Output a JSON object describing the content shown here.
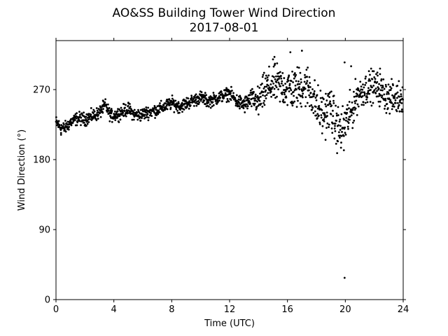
{
  "chart_data": {
    "type": "scatter",
    "title": "AO&SS Building Tower Wind Direction",
    "subtitle": "2017-08-01",
    "xlabel": "Time (UTC)",
    "ylabel": "Wind Direction (°)",
    "xlim": [
      0,
      24
    ],
    "ylim": [
      0,
      333
    ],
    "xticks": [
      0,
      4,
      8,
      12,
      16,
      20,
      24
    ],
    "xtick_labels": [
      "0",
      "4",
      "8",
      "12",
      "16",
      "20",
      "24"
    ],
    "yticks": [
      0,
      90,
      180,
      270
    ],
    "ytick_labels": [
      "0",
      "90",
      "180",
      "270"
    ],
    "grid": false,
    "marker_color": "#000000",
    "trend": [
      [
        0.0,
        228
      ],
      [
        0.3,
        222
      ],
      [
        0.6,
        220
      ],
      [
        1.0,
        228
      ],
      [
        1.5,
        233
      ],
      [
        2.0,
        232
      ],
      [
        2.5,
        236
      ],
      [
        3.0,
        240
      ],
      [
        3.4,
        250
      ],
      [
        3.8,
        236
      ],
      [
        4.2,
        238
      ],
      [
        4.6,
        242
      ],
      [
        5.0,
        245
      ],
      [
        5.4,
        238
      ],
      [
        5.8,
        237
      ],
      [
        6.2,
        240
      ],
      [
        6.6,
        242
      ],
      [
        7.0,
        244
      ],
      [
        7.5,
        248
      ],
      [
        8.0,
        253
      ],
      [
        8.5,
        248
      ],
      [
        9.0,
        252
      ],
      [
        9.5,
        256
      ],
      [
        10.0,
        260
      ],
      [
        10.5,
        255
      ],
      [
        11.0,
        258
      ],
      [
        11.5,
        262
      ],
      [
        12.0,
        265
      ],
      [
        12.5,
        255
      ],
      [
        13.0,
        250
      ],
      [
        13.5,
        258
      ],
      [
        14.0,
        255
      ],
      [
        14.5,
        270
      ],
      [
        15.0,
        278
      ],
      [
        15.5,
        275
      ],
      [
        16.0,
        272
      ],
      [
        16.5,
        270
      ],
      [
        17.0,
        275
      ],
      [
        17.5,
        273
      ],
      [
        18.0,
        248
      ],
      [
        18.5,
        238
      ],
      [
        19.0,
        248
      ],
      [
        19.3,
        225
      ],
      [
        19.7,
        215
      ],
      [
        20.0,
        228
      ],
      [
        20.4,
        240
      ],
      [
        20.8,
        262
      ],
      [
        21.3,
        270
      ],
      [
        21.8,
        275
      ],
      [
        22.3,
        272
      ],
      [
        22.8,
        262
      ],
      [
        23.3,
        258
      ],
      [
        24.0,
        262
      ]
    ],
    "spread": [
      [
        0.0,
        4
      ],
      [
        12.0,
        4
      ],
      [
        13.5,
        6
      ],
      [
        14.5,
        12
      ],
      [
        18.0,
        14
      ],
      [
        20.0,
        14
      ],
      [
        21.0,
        10
      ],
      [
        24.0,
        10
      ]
    ],
    "outliers": [
      {
        "x": 16.2,
        "y": 318
      },
      {
        "x": 17.0,
        "y": 320
      },
      {
        "x": 19.95,
        "y": 305
      },
      {
        "x": 15.1,
        "y": 312
      },
      {
        "x": 22.4,
        "y": 297
      },
      {
        "x": 19.9,
        "y": 192
      },
      {
        "x": 19.95,
        "y": 28
      },
      {
        "x": 14.0,
        "y": 238
      },
      {
        "x": 0.35,
        "y": 212
      },
      {
        "x": 20.4,
        "y": 300
      }
    ]
  }
}
